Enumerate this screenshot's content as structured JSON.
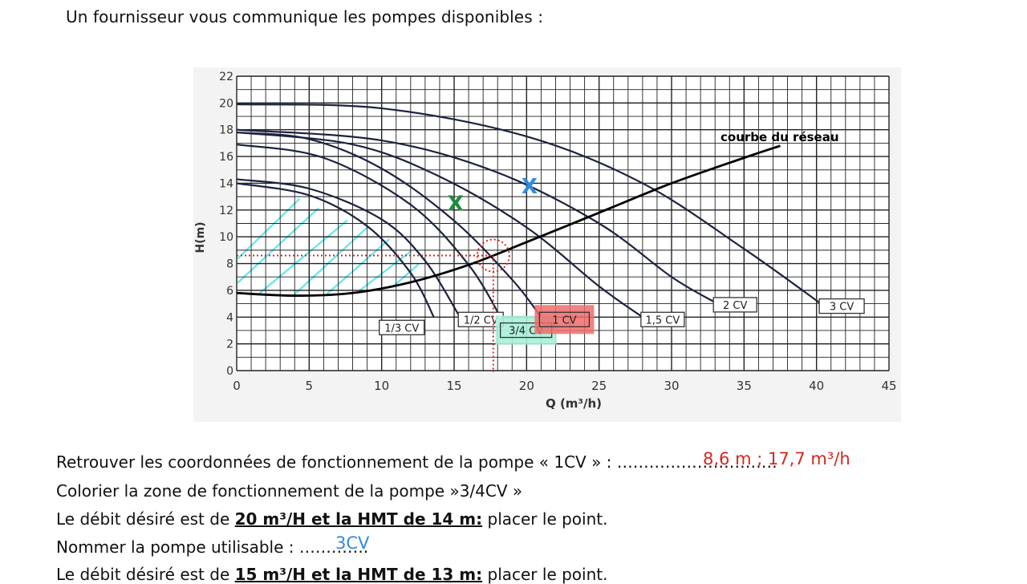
{
  "intro": "Un fournisseur vous communique les pompes disponibles :",
  "colors": {
    "red": "#d8261e",
    "blue": "#2e8be0",
    "green": "#1f8a3c",
    "cyan": "#5fe8ee",
    "curve": "#1c2340"
  },
  "questions": {
    "q1_text": "Retrouver les coordonnées de fonctionnement de la pompe « 1CV » :",
    "q1_dots": "…………………………",
    "q1_answer": "8,6 m ; 17,7 m³/h",
    "q2_text": "Colorier la zone de fonctionnement de la pompe »3/4CV »",
    "q3_prefix": "Le débit désiré est de ",
    "q3_bold": "20 m³/H et la HMT de 14 m:",
    "q3_suffix": " placer le point.",
    "q4_text": "Nommer la pompe utilisable :",
    "q4_dots": "………….",
    "q4_answer": "3CV",
    "q5_prefix": "Le débit désiré est de ",
    "q5_bold": "15 m³/H et la HMT de 13 m:",
    "q5_suffix": " placer le point."
  },
  "chart_data": {
    "type": "line",
    "xlabel": "Q (m³/h)",
    "ylabel": "H(m)",
    "xlim": [
      0,
      45
    ],
    "ylim": [
      0,
      22
    ],
    "x_ticks": [
      0,
      5,
      10,
      15,
      20,
      25,
      30,
      35,
      40,
      45
    ],
    "y_ticks": [
      0,
      2,
      4,
      6,
      8,
      10,
      12,
      14,
      16,
      18,
      20,
      22
    ],
    "grid": true,
    "pump_curves": [
      {
        "label": "1/3 CV",
        "points": [
          [
            0,
            14.0
          ],
          [
            5,
            13.1
          ],
          [
            9,
            10.8
          ],
          [
            12,
            7.3
          ],
          [
            13.6,
            4.0
          ]
        ]
      },
      {
        "label": "1/2 CV",
        "points": [
          [
            0,
            14.3
          ],
          [
            5,
            13.6
          ],
          [
            10,
            11.3
          ],
          [
            13,
            8.2
          ],
          [
            15.4,
            4.0
          ]
        ]
      },
      {
        "label": "3/4 CV",
        "points": [
          [
            0,
            16.9
          ],
          [
            6,
            15.9
          ],
          [
            12,
            12.4
          ],
          [
            16,
            7.9
          ],
          [
            18.3,
            3.8
          ]
        ]
      },
      {
        "label": "1 CV",
        "points": [
          [
            0,
            17.8
          ],
          [
            5,
            17.3
          ],
          [
            10,
            15.1
          ],
          [
            15,
            11.2
          ],
          [
            19,
            6.8
          ],
          [
            21,
            4.0
          ]
        ]
      },
      {
        "label": "1,5 CV",
        "points": [
          [
            0,
            17.8
          ],
          [
            8,
            16.9
          ],
          [
            14,
            14.5
          ],
          [
            20,
            10.7
          ],
          [
            25,
            6.3
          ],
          [
            28,
            4.0
          ]
        ]
      },
      {
        "label": "2 CV",
        "points": [
          [
            0,
            18.0
          ],
          [
            10,
            17.2
          ],
          [
            18,
            14.8
          ],
          [
            25,
            11.0
          ],
          [
            30,
            7.0
          ],
          [
            33.0,
            5.1
          ]
        ]
      },
      {
        "label": "3 CV",
        "points": [
          [
            0,
            19.9
          ],
          [
            10,
            19.6
          ],
          [
            20,
            17.5
          ],
          [
            28,
            14.0
          ],
          [
            35,
            9.1
          ],
          [
            40.3,
            5.0
          ]
        ]
      }
    ],
    "network_curve": {
      "label": "courbe du réseau",
      "points": [
        [
          0,
          5.8
        ],
        [
          4,
          5.6
        ],
        [
          8,
          5.8
        ],
        [
          12,
          6.6
        ],
        [
          16,
          7.9
        ],
        [
          20,
          9.6
        ],
        [
          25,
          11.8
        ],
        [
          30,
          14.0
        ],
        [
          35,
          15.9
        ],
        [
          37.5,
          16.8
        ]
      ]
    },
    "operating_point": {
      "x": 17.7,
      "y": 8.6
    },
    "marks": [
      {
        "label": "X",
        "x": 15.1,
        "y": 12.5,
        "color": "green"
      },
      {
        "label": "X",
        "x": 20.2,
        "y": 13.8,
        "color": "blue"
      }
    ],
    "hatched_zone": "3/4 CV"
  }
}
